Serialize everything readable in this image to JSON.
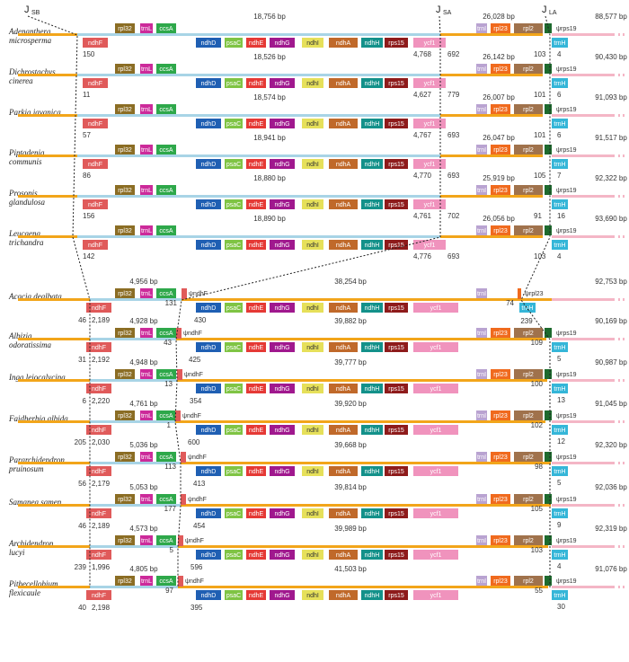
{
  "junctions": {
    "jsb": {
      "main": "J",
      "sub": "SB"
    },
    "jsa": {
      "main": "J",
      "sub": "SA"
    },
    "jla": {
      "main": "J",
      "sub": "LA"
    }
  },
  "colors": {
    "lsc": "#f2a51a",
    "ssc": "#a8d4e6",
    "ira": "#f4b6c6",
    "ndhF": "#e05a5a",
    "rpl32": "#8b6d24",
    "trnL": "#cc2a9a",
    "ccsA": "#2ea84a",
    "ndhD": "#1f5fb3",
    "psaC": "#7fc444",
    "ndhE": "#e53935",
    "ndhG": "#a0188e",
    "ndhI": "#e6e05a",
    "ndhA": "#c0692a",
    "ndhH": "#13918a",
    "rps15": "#8e1b1b",
    "ycf1": "#f093bd",
    "trnI": "#b9a3d1",
    "rpl23": "#f06a1e",
    "rpl2": "#a0724c",
    "rps19": "#1e6a2e",
    "trnH": "#35b6d8",
    "rps3": "#8a3030"
  },
  "gene_names": {
    "ndhF": "ndhF",
    "rpl32": "rpl32",
    "trnL": "trnL",
    "ccsA": "ccsA",
    "ndhD": "ndhD",
    "psaC": "psaC",
    "ndhE": "ndhE",
    "ndhG": "ndhG",
    "ndhI": "ndhI",
    "ndhA": "ndhA",
    "ndhH": "ndhH",
    "rps15": "rps15",
    "ycf1": "ycf1",
    "trnI": "trnI",
    "rpl23": "rpl23",
    "rpl2": "rpl2",
    "rps19": "rps19",
    "trnH": "trnH",
    "rps3": "rps3",
    "psi_rps19": "ψrps19",
    "psi_ndhF": "ψndhF",
    "psi_rpl23": "ψrpl23"
  },
  "species": [
    {
      "name": [
        "Adenanthera",
        "microsperma"
      ],
      "ssc_bp": "18,756 bp",
      "ira_bp": "26,028 bp",
      "lsc_bp": "88,577 bp",
      "ndhF_left": "150",
      "ycf1_in": "4,768",
      "ycf1_out": "692",
      "rps19_in": "103",
      "trnH_gap": "4"
    },
    {
      "name": [
        "Dichrostachys",
        "cinerea"
      ],
      "ssc_bp": "18,526 bp",
      "ira_bp": "26,142 bp",
      "lsc_bp": "90,430 bp",
      "ndhF_left": "11",
      "ycf1_in": "4,627",
      "ycf1_out": "779",
      "rps19_in": "101",
      "trnH_gap": "6"
    },
    {
      "name": [
        "Parkia javanica"
      ],
      "ssc_bp": "18,574 bp",
      "ira_bp": "26,007 bp",
      "lsc_bp": "91,093 bp",
      "ndhF_left": "57",
      "ycf1_in": "4,767",
      "ycf1_out": "693",
      "rps19_in": "101",
      "trnH_gap": "6"
    },
    {
      "name": [
        "Piptadenia",
        "communis"
      ],
      "ssc_bp": "18,941 bp",
      "ira_bp": "26,047 bp",
      "lsc_bp": "91,517 bp",
      "ndhF_left": "86",
      "ycf1_in": "4,770",
      "ycf1_out": "693",
      "rps19_in": "105",
      "trnH_gap": "7"
    },
    {
      "name": [
        "Prosopis",
        "glandulosa"
      ],
      "ssc_bp": "18,880 bp",
      "ira_bp": "25,919 bp",
      "lsc_bp": "92,322 bp",
      "ndhF_left": "156",
      "ycf1_in": "4,761",
      "ycf1_out": "702",
      "rps19_in": "91",
      "trnH_gap": "16"
    },
    {
      "name": [
        "Leucaena",
        "trichandra"
      ],
      "ssc_bp": "18,890 bp",
      "ira_bp": "26,056 bp",
      "lsc_bp": "93,690 bp",
      "ndhF_left": "142",
      "ycf1_in": "4,776",
      "ycf1_out": "693",
      "rps19_in": "103",
      "trnH_gap": "4"
    },
    {
      "name": [
        "Acacia dealbata"
      ],
      "irb_bp": "4,956 bp",
      "ssc_bp": "38,254 bp",
      "lsc_bp": "92,753 bp",
      "ndhF_a": "46",
      "ndhF_b": "2,189",
      "psi_in": "131",
      "ndhD_gap": "430",
      "rpl23_a": "74",
      "rpl23_b": "239"
    },
    {
      "name": [
        "Albizia",
        "odoratissima"
      ],
      "irb_bp": "4,928 bp",
      "ssc_bp": "39,882 bp",
      "lsc_bp": "90,169 bp",
      "ndhF_a": "31",
      "ndhF_b": "2,192",
      "psi_in": "43",
      "ndhD_gap": "425",
      "rps19_in": "109",
      "trnH_gap": "5"
    },
    {
      "name": [
        "Inga leiocalycina"
      ],
      "irb_bp": "4,948 bp",
      "ssc_bp": "39,777 bp",
      "lsc_bp": "90,987 bp",
      "ndhF_a": "6",
      "ndhF_b": "2,220",
      "psi_in": "13",
      "ndhD_gap": "354",
      "rps19_in": "100",
      "trnH_gap": "13"
    },
    {
      "name": [
        "Faidherbia albida"
      ],
      "irb_bp": "4,761 bp",
      "ssc_bp": "39,920 bp",
      "lsc_bp": "91,045 bp",
      "ndhF_a": "205",
      "ndhF_b": "2,030",
      "psi_in": "1",
      "ndhD_gap": "600",
      "rps19_in": "102",
      "trnH_gap": "12"
    },
    {
      "name": [
        "Pararchidendron",
        "pruinosum"
      ],
      "irb_bp": "5,036 bp",
      "ssc_bp": "39,668 bp",
      "lsc_bp": "92,320 bp",
      "ndhF_a": "56",
      "ndhF_b": "2,179",
      "psi_in": "113",
      "ndhD_gap": "413",
      "rps19_in": "98",
      "trnH_gap": "5"
    },
    {
      "name": [
        "Samanea samen"
      ],
      "irb_bp": "5,053 bp",
      "ssc_bp": "39,814 bp",
      "lsc_bp": "92,036 bp",
      "ndhF_a": "46",
      "ndhF_b": "2,189",
      "psi_in": "177",
      "ndhD_gap": "454",
      "rps19_in": "105",
      "trnH_gap": "9"
    },
    {
      "name": [
        "Archidendron",
        "lucyi"
      ],
      "irb_bp": "4,573 bp",
      "ssc_bp": "39,989 bp",
      "lsc_bp": "92,319 bp",
      "ndhF_a": "239",
      "ndhF_b": "1,996",
      "psi_in": "5",
      "ndhD_gap": "596",
      "rps19_in": "103",
      "trnH_gap": "4"
    },
    {
      "name": [
        "Pithecellobium",
        "flexicaule"
      ],
      "irb_bp": "4,805 bp",
      "ssc_bp": "41,503 bp",
      "lsc_bp": "91,076 bp",
      "ndhF_a": "40",
      "ndhF_b": "2,198",
      "psi_in": "97",
      "ndhD_gap": "395",
      "rps19_in": "55",
      "trnH_gap": "30"
    }
  ]
}
